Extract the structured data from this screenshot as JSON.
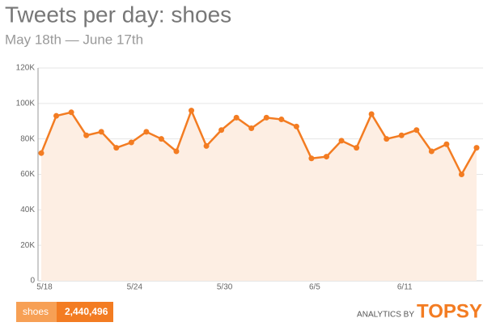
{
  "chart_data": {
    "type": "area",
    "title": "Tweets per day: shoes",
    "subtitle": "May 18th — June 17th",
    "categories": [
      "5/18",
      null,
      null,
      null,
      null,
      null,
      "5/24",
      null,
      null,
      null,
      null,
      null,
      "5/30",
      null,
      null,
      null,
      null,
      null,
      "6/5",
      null,
      null,
      null,
      null,
      null,
      "6/11",
      null,
      null,
      null,
      null,
      null
    ],
    "series": [
      {
        "name": "shoes",
        "color": "#f37c22",
        "fill": "#fdeee3",
        "values": [
          72000,
          93000,
          95000,
          82000,
          84000,
          75000,
          78000,
          84000,
          80000,
          73000,
          96000,
          76000,
          85000,
          92000,
          86000,
          92000,
          91000,
          87000,
          69000,
          70000,
          79000,
          75000,
          94000,
          80000,
          82000,
          85000,
          73000,
          77000,
          60000,
          75000
        ]
      }
    ],
    "total": "2,440,496",
    "ylim": [
      0,
      120000
    ],
    "yticks": [
      0,
      {
        "value": 20000,
        "label": "20K"
      },
      {
        "value": 40000,
        "label": "40K"
      },
      {
        "value": 60000,
        "label": "60K"
      },
      {
        "value": 80000,
        "label": "80K"
      },
      {
        "value": 100000,
        "label": "100K"
      },
      {
        "value": 120000,
        "label": "120K"
      }
    ],
    "grid": true,
    "footer": {
      "prefix": "ANALYTICS BY",
      "brand": "TOPSY"
    }
  }
}
